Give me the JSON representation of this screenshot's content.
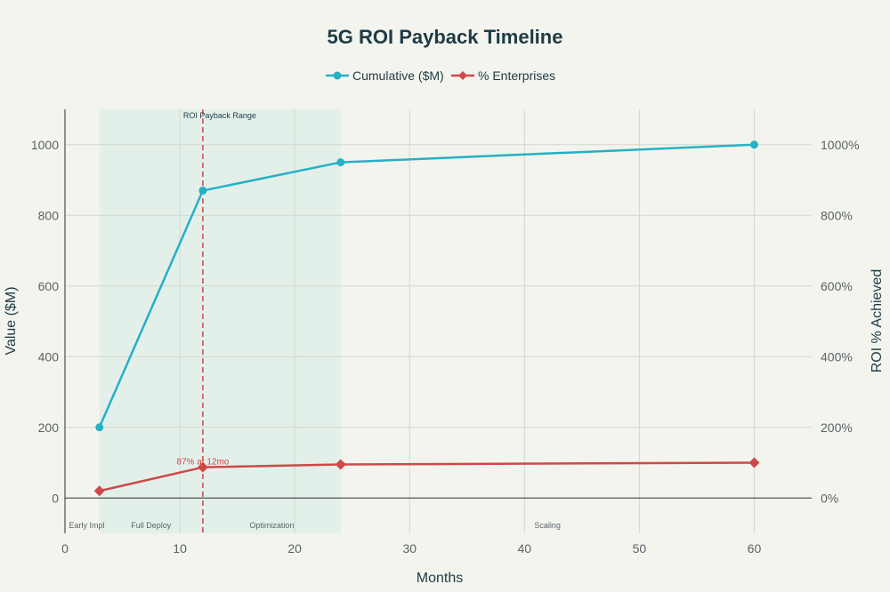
{
  "chart_data": {
    "type": "line",
    "title": "5G ROI Payback Timeline",
    "xlabel": "Months",
    "ylabel": "Value ($M)",
    "y2label": "ROI % Achieved",
    "xlim": [
      0,
      65
    ],
    "ylim": [
      -100,
      1100
    ],
    "y2lim": [
      -100,
      1100
    ],
    "x_ticks": [
      0,
      10,
      20,
      30,
      40,
      50,
      60
    ],
    "y_ticks": [
      0,
      200,
      400,
      600,
      800,
      1000
    ],
    "y2_ticks": [
      "0%",
      "200%",
      "400%",
      "600%",
      "800%",
      "1000%"
    ],
    "grid": true,
    "legend_position": "top-center",
    "series": [
      {
        "name": "Cumulative ($M)",
        "color": "#26b0c6",
        "marker": "circle",
        "axis": "left",
        "x": [
          3,
          12,
          24,
          60
        ],
        "y": [
          200,
          870,
          950,
          1000
        ]
      },
      {
        "name": "% Enterprises",
        "color": "#d04848",
        "marker": "diamond",
        "axis": "right",
        "x": [
          3,
          12,
          24,
          60
        ],
        "y": [
          20,
          87,
          95,
          100
        ]
      }
    ],
    "shaded_region": {
      "x": [
        3,
        24
      ],
      "label": "ROI Payback Range"
    },
    "vertical_line": {
      "x": 12,
      "color": "#d04848"
    },
    "point_annotation": {
      "x": 12,
      "y": 87,
      "text": "87% at 12mo"
    },
    "phases": [
      {
        "label": "Early Impl",
        "x": 1.9
      },
      {
        "label": "Full Deploy",
        "x": 7.5
      },
      {
        "label": "Optimization",
        "x": 18
      },
      {
        "label": "Scaling",
        "x": 42
      }
    ]
  }
}
